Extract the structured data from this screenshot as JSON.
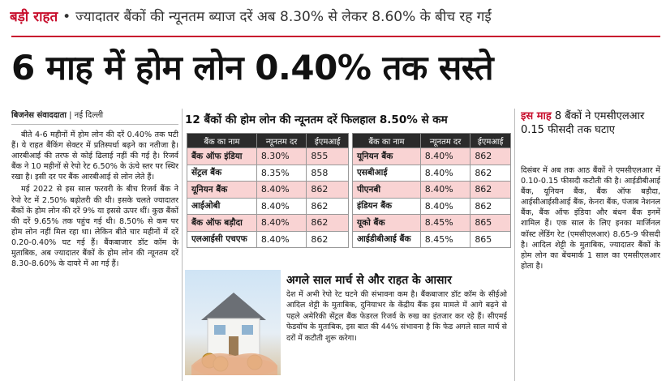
{
  "kicker": {
    "label": "बड़ी राहत",
    "bullet": "•",
    "text": "ज्यादातर बैंकों की न्यूनतम ब्याज दरें अब 8.30% से लेकर 8.60% के बीच रह गईं"
  },
  "headline": "6 माह में होम लोन 0.40% तक सस्ते",
  "byline": {
    "author": "बिजनेस संवाददाता",
    "separator": "|",
    "place": "नई दिल्ली"
  },
  "left_column": {
    "paragraphs": [
      "बीते 4-6 महीनों में होम लोन की दरें 0.40% तक घटी हैं। ये राहत बैंकिंग सेक्टर में प्रतिस्पर्धा बढ़ने का नतीजा है। आरबीआई की तरफ से कोई ढिलाई नहीं की गई है। रिजर्व बैंक ने 10 महीनों से रेपो रेट 6.50% के ऊंचे स्तर पर स्थिर रखा है। इसी दर पर बैंक आरबीआई से लोन लेते हैं।",
      "मई 2022 से इस साल फरवरी के बीच रिजर्व बैंक ने रेपो रेट में 2.50% बढ़ोतरी की थी। इसके चलते ज्यादातर बैंकों के होम लोन की दरें 9% या इससे ऊपर थीं। कुछ बैंकों की दरें 9.65% तक पहुंच गई थी। 8.50% से कम पर होम लोन नहीं मिल रहा था। लेकिन बीते चार महीनों में दरें 0.20-0.40% घट गई हैं। बैंकबाजार डॉट कॉम के मुताबिक, अब ज्यादातर बैंकों के होम लोन की न्यूनतम दरें 8.30-8.60% के दायरे में आ गई हैं।"
    ]
  },
  "rates_table": {
    "title": "12 बैंकों की होम लोन की न्यूनतम दरें फिलहाल 8.50% से कम",
    "headers": [
      "बैंक का नाम",
      "न्यूनतम दर",
      "ईएमआई"
    ],
    "left_rows": [
      {
        "bank": "बैंक ऑफ इंडिया",
        "rate": "8.30%",
        "emi": "855"
      },
      {
        "bank": "सेंट्रल बैंक",
        "rate": "8.35%",
        "emi": "858"
      },
      {
        "bank": "यूनियन बैंक",
        "rate": "8.40%",
        "emi": "862"
      },
      {
        "bank": "आईओबी",
        "rate": "8.40%",
        "emi": "862"
      },
      {
        "bank": "बैंक ऑफ बड़ौदा",
        "rate": "8.40%",
        "emi": "862"
      },
      {
        "bank": "एलआईसी एचएफ",
        "rate": "8.40%",
        "emi": "862"
      }
    ],
    "right_rows": [
      {
        "bank": "यूनियन बैंक",
        "rate": "8.40%",
        "emi": "862"
      },
      {
        "bank": "एसबीआई",
        "rate": "8.40%",
        "emi": "862"
      },
      {
        "bank": "पीएनबी",
        "rate": "8.40%",
        "emi": "862"
      },
      {
        "bank": "इंडियन बैंक",
        "rate": "8.40%",
        "emi": "862"
      },
      {
        "bank": "यूको बैंक",
        "rate": "8.45%",
        "emi": "865"
      },
      {
        "bank": "आईडीबीआई बैंक",
        "rate": "8.45%",
        "emi": "865"
      }
    ]
  },
  "subsection": {
    "heading": "अगले साल मार्च से और राहत के आसार",
    "body": "देश में अभी रेपो रेट घटने की संभावना कम है। बैंकबाजार डॉट कॉम के सीईओ आदिल शेट्टी के मुताबिक, दुनियाभर के केंद्रीय बैंक इस मामले में आगे बढ़ने से पहले अमेरिकी सेंट्रल बैंक फेडरल रिजर्व के रुख का इंतजार कर रहे हैं। सीएमई फेडवॉच के मुताबिक, इस बात की 44% संभावना है कि फेड अगले साल मार्च से दरों में कटौती शुरू करेगा।"
  },
  "sidebar": {
    "highlight": "इस माह",
    "heading": "8 बैंकों ने एमसीएलआर 0.15 फीसदी तक घटाए",
    "body": "दिसंबर में अब तक आठ बैंकों ने एमसीएलआर में 0.10-0.15 फीसदी कटौती की है। आईडीबीआई बैंक, यूनियन बैंक, बैंक ऑफ बड़ौदा, आईसीआईसीआई बैंक, केनरा बैंक, पंजाब नेशनल बैंक, बैंक ऑफ इंडिया और बंधन बैंक इनमें शामिल हैं। एक साल के लिए इनका मार्जिनल कॉस्ट लेंडिंग रेट (एमसीएलआर) 8.65-9 फीसदी है। आदिल शेट्टी के मुताबिक, ज्यादातर बैंकों के होम लोन का बेंचमार्क 1 साल का एमसीएलआर होता है।"
  },
  "colors": {
    "accent_red": "#c8102e",
    "header_dark": "#2b2b2b",
    "row_pink": "#f9d3d3"
  }
}
